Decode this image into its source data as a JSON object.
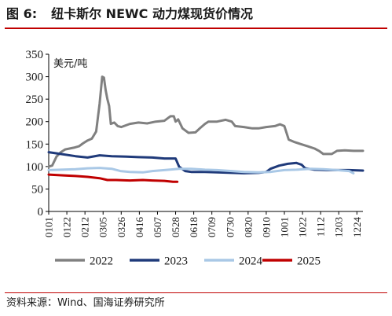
{
  "figure": {
    "label": "图 6:",
    "title": "纽卡斯尔 NEWC 动力煤现货价情况"
  },
  "source_note": "资料来源：Wind、国海证券研究所",
  "colors": {
    "rule": "#c00000",
    "series_2022": "#808080",
    "series_2023": "#1f3a7a",
    "series_2024": "#a9c8e6",
    "series_2025": "#c00000",
    "axis": "#000000"
  },
  "chart_data": {
    "type": "line",
    "unit_label": "美元/吨",
    "ylim": [
      0,
      350
    ],
    "yticks": [
      0,
      50,
      100,
      150,
      200,
      250,
      300,
      350
    ],
    "xlim": [
      "0101",
      "1231"
    ],
    "xticks": [
      "0101",
      "0122",
      "0212",
      "0305",
      "0326",
      "0416",
      "0507",
      "0528",
      "0618",
      "0709",
      "0730",
      "0820",
      "0910",
      "1001",
      "1022",
      "1112",
      "1203",
      "1224"
    ],
    "grid": false,
    "legend_position": "bottom",
    "series": [
      {
        "name": "2022",
        "color": "#808080",
        "points": [
          [
            "0101",
            100
          ],
          [
            "0105",
            102
          ],
          [
            "0110",
            122
          ],
          [
            "0115",
            132
          ],
          [
            "0120",
            138
          ],
          [
            "0125",
            140
          ],
          [
            "0130",
            142
          ],
          [
            "0205",
            145
          ],
          [
            "0210",
            152
          ],
          [
            "0215",
            158
          ],
          [
            "0220",
            162
          ],
          [
            "0225",
            178
          ],
          [
            "0301",
            240
          ],
          [
            "0304",
            300
          ],
          [
            "0306",
            298
          ],
          [
            "0308",
            270
          ],
          [
            "0310",
            250
          ],
          [
            "0312",
            235
          ],
          [
            "0314",
            195
          ],
          [
            "0318",
            198
          ],
          [
            "0322",
            190
          ],
          [
            "0326",
            188
          ],
          [
            "0405",
            195
          ],
          [
            "0415",
            198
          ],
          [
            "0425",
            196
          ],
          [
            "0505",
            200
          ],
          [
            "0515",
            202
          ],
          [
            "0522",
            212
          ],
          [
            "0526",
            212
          ],
          [
            "0528",
            200
          ],
          [
            "0531",
            205
          ],
          [
            "0605",
            185
          ],
          [
            "0612",
            175
          ],
          [
            "0620",
            176
          ],
          [
            "0625",
            185
          ],
          [
            "0701",
            195
          ],
          [
            "0705",
            200
          ],
          [
            "0715",
            200
          ],
          [
            "0725",
            204
          ],
          [
            "0801",
            200
          ],
          [
            "0805",
            190
          ],
          [
            "0815",
            188
          ],
          [
            "0825",
            185
          ],
          [
            "0901",
            185
          ],
          [
            "0910",
            188
          ],
          [
            "0920",
            190
          ],
          [
            "0926",
            194
          ],
          [
            "1001",
            190
          ],
          [
            "1006",
            160
          ],
          [
            "1012",
            155
          ],
          [
            "1020",
            150
          ],
          [
            "1028",
            145
          ],
          [
            "1105",
            140
          ],
          [
            "1110",
            135
          ],
          [
            "1115",
            128
          ],
          [
            "1125",
            128
          ],
          [
            "1201",
            135
          ],
          [
            "1210",
            136
          ],
          [
            "1220",
            135
          ],
          [
            "1231",
            135
          ]
        ]
      },
      {
        "name": "2023",
        "color": "#1f3a7a",
        "points": [
          [
            "0101",
            132
          ],
          [
            "0115",
            128
          ],
          [
            "0201",
            123
          ],
          [
            "0215",
            120
          ],
          [
            "0301",
            125
          ],
          [
            "0315",
            123
          ],
          [
            "0401",
            122
          ],
          [
            "0415",
            121
          ],
          [
            "0501",
            120
          ],
          [
            "0515",
            118
          ],
          [
            "0528",
            118
          ],
          [
            "0601",
            100
          ],
          [
            "0608",
            90
          ],
          [
            "0615",
            88
          ],
          [
            "0701",
            88
          ],
          [
            "0715",
            87
          ],
          [
            "0801",
            86
          ],
          [
            "0815",
            85
          ],
          [
            "0901",
            86
          ],
          [
            "0910",
            88
          ],
          [
            "0915",
            95
          ],
          [
            "0925",
            102
          ],
          [
            "1005",
            106
          ],
          [
            "1015",
            108
          ],
          [
            "1021",
            104
          ],
          [
            "1025",
            96
          ],
          [
            "1105",
            93
          ],
          [
            "1120",
            92
          ],
          [
            "1201",
            92
          ],
          [
            "1215",
            92
          ],
          [
            "1231",
            91
          ]
        ]
      },
      {
        "name": "2024",
        "color": "#a9c8e6",
        "points": [
          [
            "0101",
            92
          ],
          [
            "0115",
            93
          ],
          [
            "0201",
            94
          ],
          [
            "0215",
            96
          ],
          [
            "0301",
            97
          ],
          [
            "0315",
            95
          ],
          [
            "0325",
            90
          ],
          [
            "0405",
            88
          ],
          [
            "0420",
            87
          ],
          [
            "0501",
            90
          ],
          [
            "0515",
            92
          ],
          [
            "0601",
            95
          ],
          [
            "0615",
            95
          ],
          [
            "0701",
            93
          ],
          [
            "0715",
            92
          ],
          [
            "0801",
            90
          ],
          [
            "0815",
            88
          ],
          [
            "0901",
            87
          ],
          [
            "0915",
            88
          ],
          [
            "1001",
            92
          ],
          [
            "1015",
            93
          ],
          [
            "1101",
            95
          ],
          [
            "1115",
            94
          ],
          [
            "1201",
            92
          ],
          [
            "1215",
            90
          ],
          [
            "1220",
            85
          ]
        ]
      },
      {
        "name": "2025",
        "color": "#c00000",
        "points": [
          [
            "0101",
            82
          ],
          [
            "0120",
            80
          ],
          [
            "0201",
            79
          ],
          [
            "0215",
            77
          ],
          [
            "0301",
            74
          ],
          [
            "0310",
            70
          ],
          [
            "0320",
            70
          ],
          [
            "0405",
            69
          ],
          [
            "0420",
            70
          ],
          [
            "0501",
            69
          ],
          [
            "0515",
            68
          ],
          [
            "0525",
            66
          ],
          [
            "0530",
            66
          ]
        ]
      }
    ]
  }
}
